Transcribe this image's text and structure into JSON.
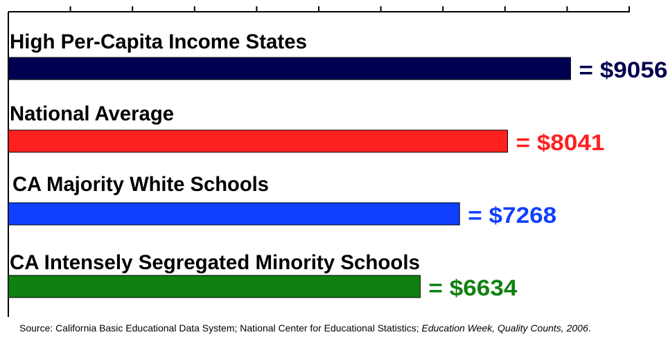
{
  "chart_data": {
    "type": "bar",
    "orientation": "horizontal",
    "categories": [
      "High Per-Capita Income States",
      "National Average",
      "CA Majority White Schools",
      "CA Intensely Segregated Minority Schools"
    ],
    "values": [
      9056,
      8041,
      7268,
      6634
    ],
    "value_labels": [
      "= $9056",
      "= $8041",
      "= $7268",
      "= $6634"
    ],
    "colors": [
      "#000050",
      "#ff2020",
      "#1040ff",
      "#108010"
    ],
    "xlim": [
      0,
      10000
    ],
    "tick_count": 10,
    "grid": false
  },
  "source": {
    "prefix": "Source:  California Basic Educational Data System; National Center for Educational Statistics; ",
    "italic": "Education Week, Quality Counts, 2006",
    "suffix": "."
  }
}
